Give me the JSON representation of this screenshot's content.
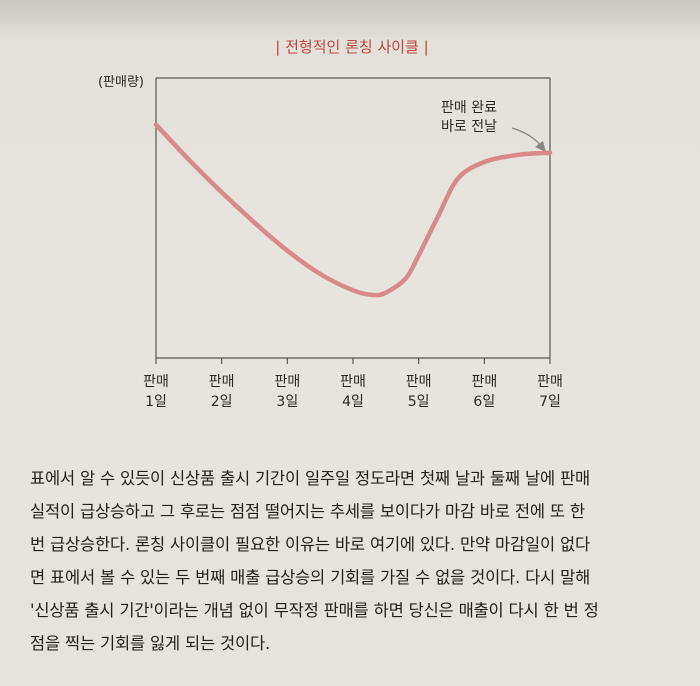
{
  "chart_data": {
    "type": "line",
    "title": "| 전형적인 론칭 사이클 |",
    "ylabel": "(판매량)",
    "xlabel": "",
    "categories": [
      [
        "판매",
        "1일"
      ],
      [
        "판매",
        "2일"
      ],
      [
        "판매",
        "3일"
      ],
      [
        "판매",
        "4일"
      ],
      [
        "판매",
        "5일"
      ],
      [
        "판매",
        "6일"
      ],
      [
        "판매",
        "7일"
      ]
    ],
    "x": [
      1,
      1.5,
      2,
      2.5,
      3,
      3.5,
      4,
      4.3,
      4.5,
      4.8,
      5,
      5.3,
      5.6,
      6,
      6.5,
      7
    ],
    "series": [
      {
        "values": [
          100,
          85,
          71,
          58,
          46,
          36,
          29,
          27,
          28,
          34,
          44,
          61,
          77,
          84,
          87,
          88
        ]
      }
    ],
    "ylim": [
      0,
      120
    ],
    "grid": false,
    "line_color": "#d9898a",
    "annotation": {
      "lines": [
        "판매 완료",
        "바로 전날"
      ],
      "target_x": 7
    }
  },
  "paragraph": {
    "lines": [
      "표에서 알 수 있듯이 신상품 출시 기간이 일주일 정도라면 첫째 날과 둘째 날에 판매",
      "실적이 급상승하고 그 후로는 점점 떨어지는 추세를 보이다가 마감 바로 전에 또 한",
      "번 급상승한다. 론칭 사이클이 필요한 이유는 바로 여기에 있다. 만약 마감일이 없다",
      "면 표에서 볼 수 있는 두 번째 매출 급상승의 기회를 가질 수 없을 것이다. 다시 말해",
      "'신상품 출시 기간'이라는 개념 없이 무작정 판매를 하면 당신은 매출이 다시 한 번 정",
      "점을 찍는 기회를 잃게 되는 것이다."
    ]
  }
}
